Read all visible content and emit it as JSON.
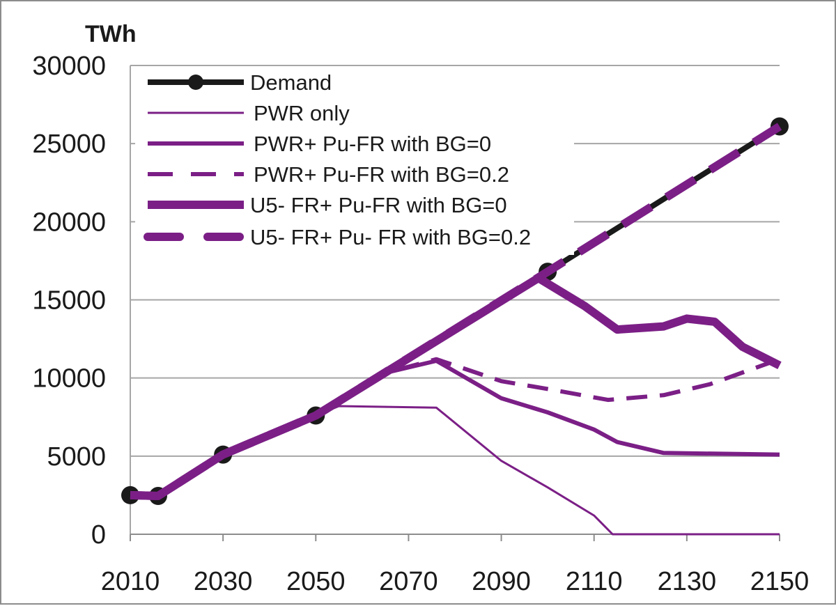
{
  "chart_data": {
    "type": "line",
    "title": "",
    "ylabel": "TWh",
    "xlabel": "",
    "xlim": [
      2010,
      2150
    ],
    "ylim": [
      0,
      30000
    ],
    "x_ticks": [
      "2010",
      "2030",
      "2050",
      "2070",
      "2090",
      "2110",
      "2130",
      "2150"
    ],
    "y_ticks": [
      "0",
      "5000",
      "10000",
      "15000",
      "20000",
      "25000",
      "30000"
    ],
    "grid": "horizontal",
    "legend_position": "top-left",
    "series": [
      {
        "name": "Demand",
        "color": "#1a1a1a",
        "style": "solid-markers",
        "points": [
          [
            2010,
            2500
          ],
          [
            2016,
            2450
          ],
          [
            2030,
            5100
          ],
          [
            2050,
            7600
          ],
          [
            2100,
            16800
          ],
          [
            2150,
            26100
          ]
        ]
      },
      {
        "name": " PWR only",
        "color": "#7b1f86",
        "style": "thin",
        "points": [
          [
            2010,
            2500
          ],
          [
            2016,
            2450
          ],
          [
            2030,
            5100
          ],
          [
            2050,
            7600
          ],
          [
            2055,
            8200
          ],
          [
            2076,
            8100
          ],
          [
            2090,
            4700
          ],
          [
            2100,
            3000
          ],
          [
            2110,
            1200
          ],
          [
            2114,
            0
          ],
          [
            2150,
            0
          ]
        ]
      },
      {
        "name": " PWR+ Pu-FR with BG=0",
        "color": "#7b1f86",
        "style": "medium",
        "points": [
          [
            2010,
            2500
          ],
          [
            2016,
            2450
          ],
          [
            2030,
            5100
          ],
          [
            2050,
            7600
          ],
          [
            2066,
            10400
          ],
          [
            2076,
            11100
          ],
          [
            2090,
            8700
          ],
          [
            2100,
            7800
          ],
          [
            2110,
            6700
          ],
          [
            2115,
            5900
          ],
          [
            2125,
            5200
          ],
          [
            2150,
            5100
          ]
        ]
      },
      {
        "name": " PWR+ Pu-FR with BG=0.2",
        "color": "#7b1f86",
        "style": "dashed",
        "points": [
          [
            2010,
            2500
          ],
          [
            2016,
            2450
          ],
          [
            2030,
            5100
          ],
          [
            2050,
            7600
          ],
          [
            2066,
            10400
          ],
          [
            2076,
            11200
          ],
          [
            2090,
            9800
          ],
          [
            2100,
            9300
          ],
          [
            2113,
            8600
          ],
          [
            2125,
            8900
          ],
          [
            2135,
            9600
          ],
          [
            2150,
            11200
          ]
        ]
      },
      {
        "name": "U5- FR+ Pu-FR with BG=0",
        "color": "#7b1f86",
        "style": "thick",
        "points": [
          [
            2010,
            2500
          ],
          [
            2016,
            2450
          ],
          [
            2030,
            5100
          ],
          [
            2050,
            7600
          ],
          [
            2098,
            16400
          ],
          [
            2108,
            14600
          ],
          [
            2115,
            13100
          ],
          [
            2125,
            13300
          ],
          [
            2130,
            13800
          ],
          [
            2136,
            13600
          ],
          [
            2142,
            12000
          ],
          [
            2150,
            10800
          ]
        ]
      },
      {
        "name": "U5- FR+ Pu- FR with BG=0.2",
        "color": "#7b1f86",
        "style": "thick-dashed",
        "points": [
          [
            2010,
            2500
          ],
          [
            2016,
            2450
          ],
          [
            2030,
            5100
          ],
          [
            2050,
            7600
          ],
          [
            2100,
            16800
          ],
          [
            2150,
            26100
          ]
        ]
      }
    ]
  }
}
